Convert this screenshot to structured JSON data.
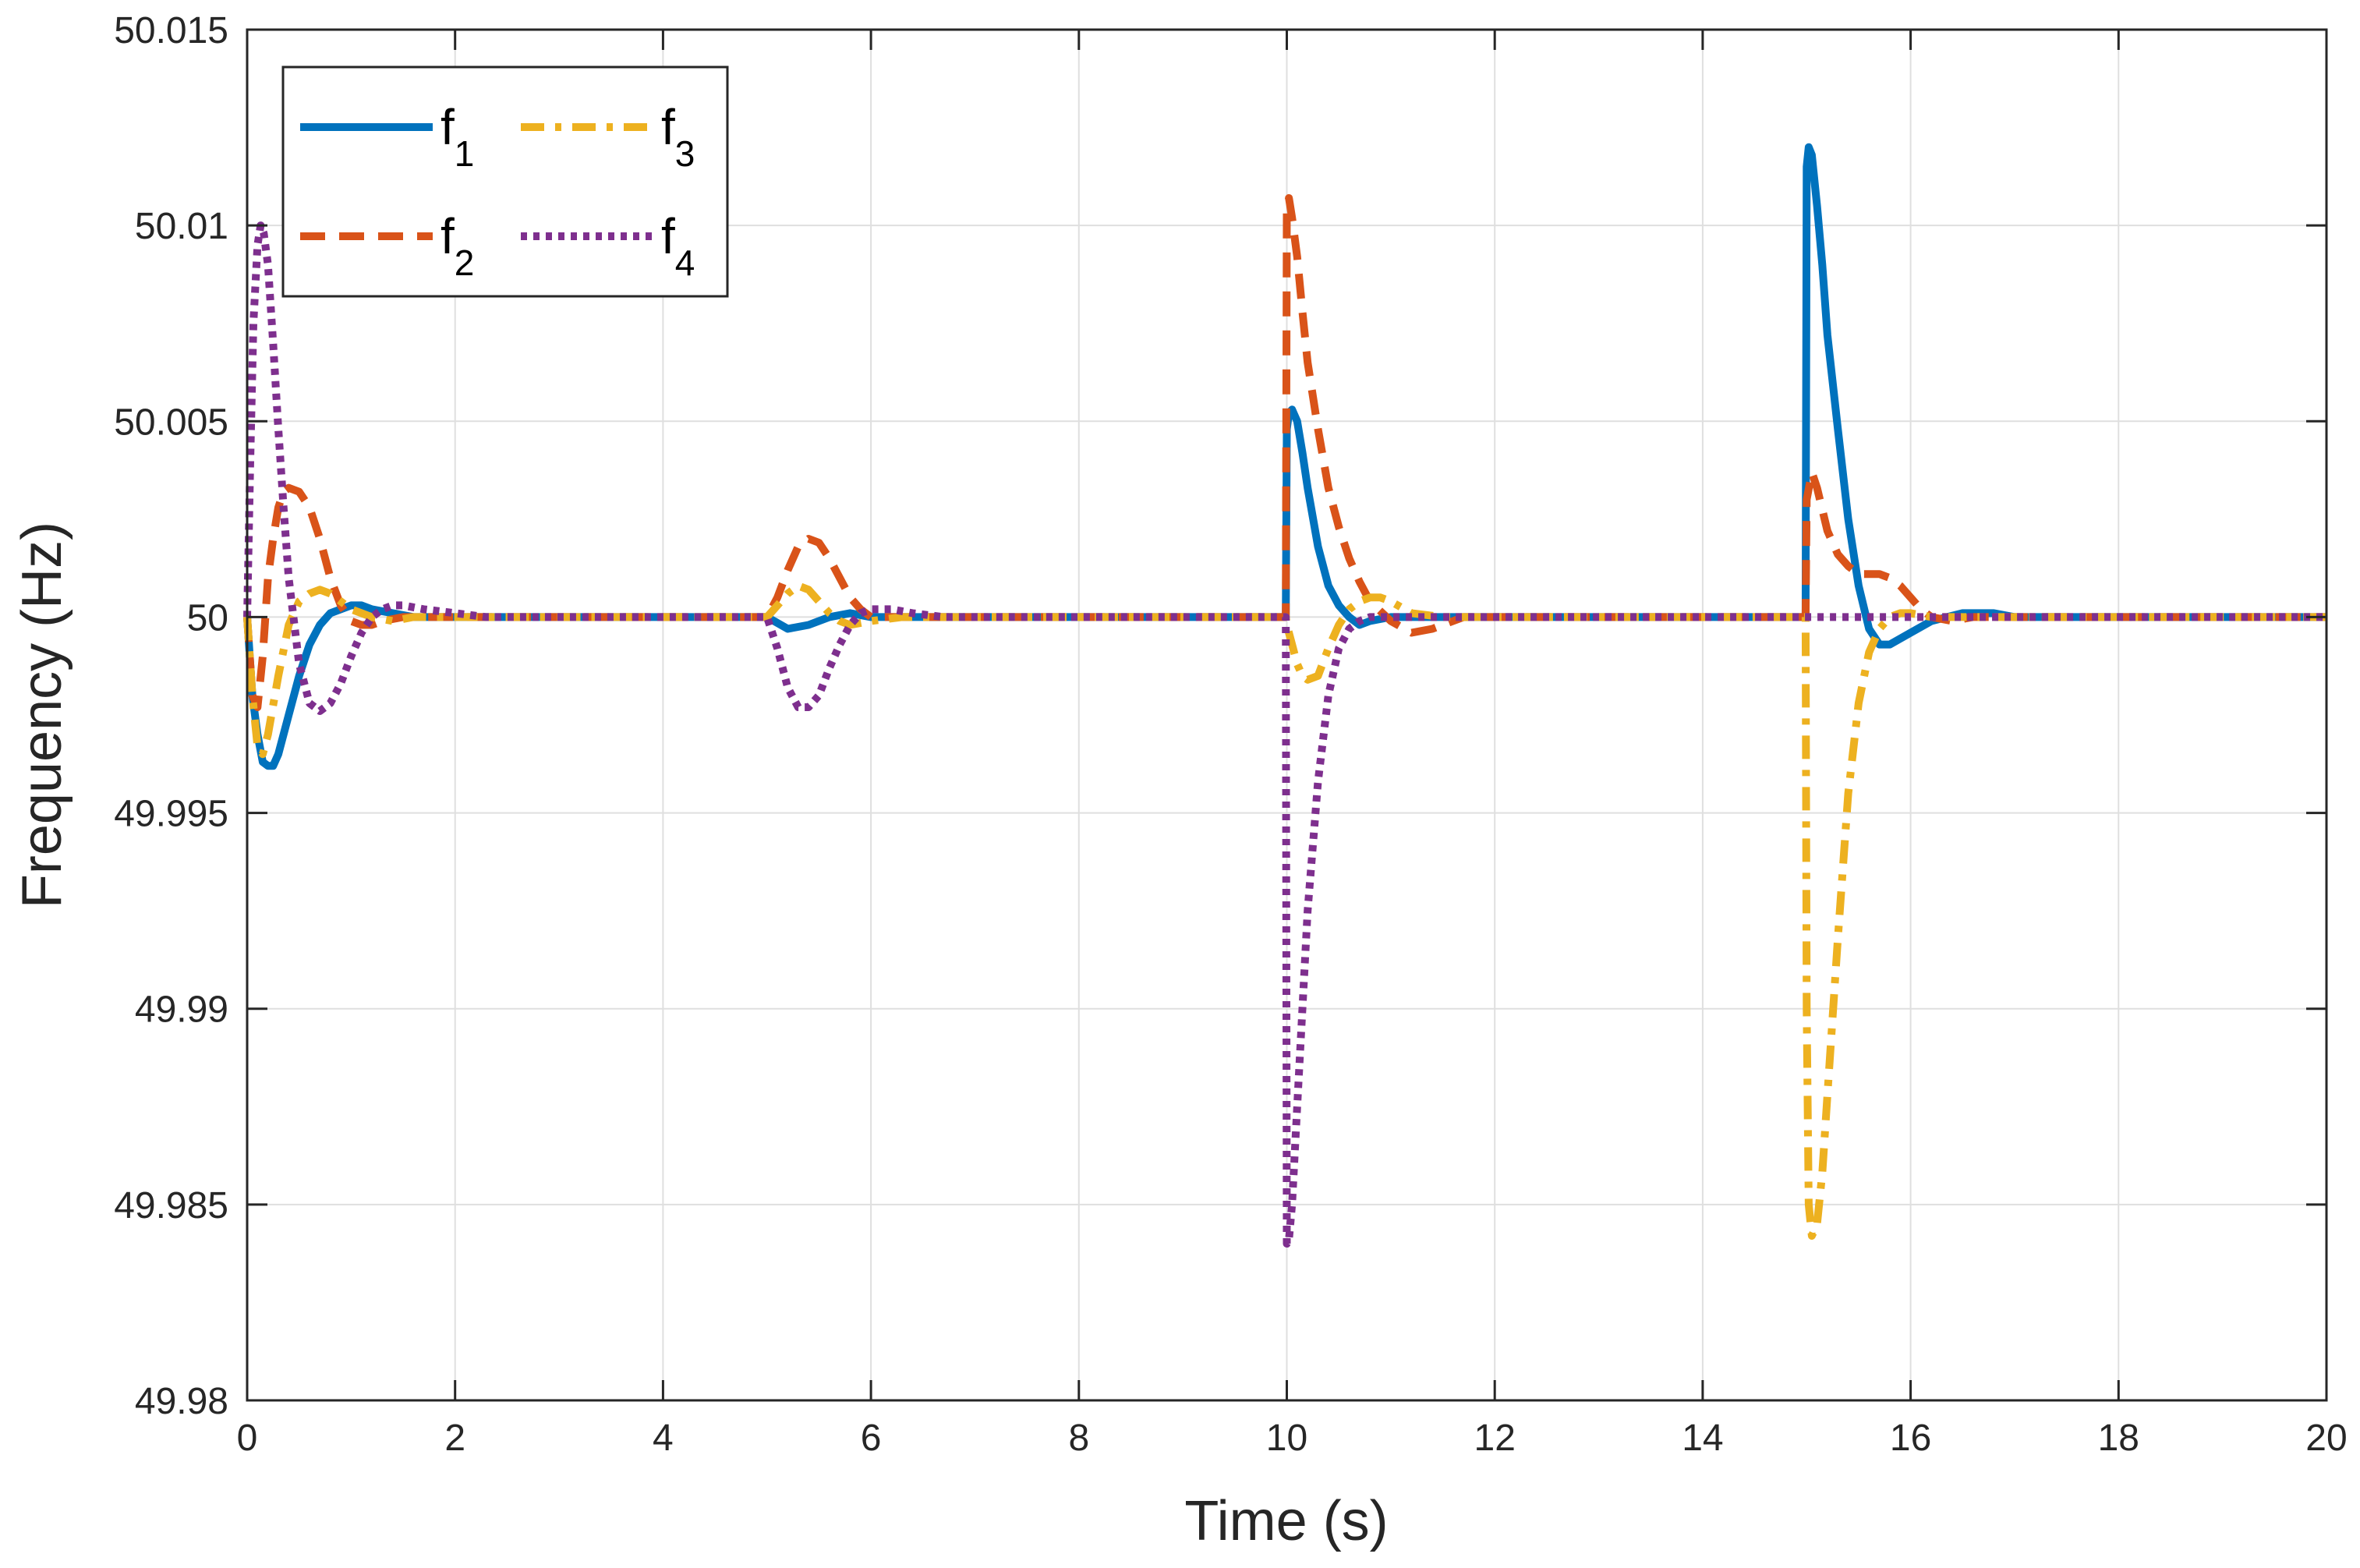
{
  "chart_data": {
    "type": "line",
    "title": "",
    "xlabel": "Time (s)",
    "ylabel": "Frequency (Hz)",
    "xlim": [
      0,
      20
    ],
    "ylim": [
      49.98,
      50.015
    ],
    "xticks": [
      0,
      2,
      4,
      6,
      8,
      10,
      12,
      14,
      16,
      18,
      20
    ],
    "xtick_labels": [
      "0",
      "2",
      "4",
      "6",
      "8",
      "10",
      "12",
      "14",
      "16",
      "18",
      "20"
    ],
    "yticks": [
      49.98,
      49.985,
      49.99,
      49.995,
      50,
      50.005,
      50.01,
      50.015
    ],
    "ytick_labels": [
      "49.98",
      "49.985",
      "49.99",
      "49.995",
      "50",
      "50.005",
      "50.01",
      "50.015"
    ],
    "grid": true,
    "legend_position": "top-left",
    "series": [
      {
        "name": "f1",
        "label_main": "f",
        "label_sub": "1",
        "color": "#0072BD",
        "style": "solid",
        "x": [
          0,
          0.05,
          0.1,
          0.15,
          0.2,
          0.25,
          0.3,
          0.4,
          0.5,
          0.6,
          0.7,
          0.8,
          0.9,
          1.0,
          1.1,
          1.2,
          1.4,
          1.6,
          2.0,
          5.0,
          5.2,
          5.4,
          5.6,
          5.8,
          6.0,
          6.5,
          9.99,
          10.0,
          10.02,
          10.05,
          10.1,
          10.15,
          10.2,
          10.3,
          10.4,
          10.5,
          10.6,
          10.7,
          10.8,
          11.0,
          11.2,
          12.0,
          14.99,
          15.0,
          15.02,
          15.05,
          15.1,
          15.15,
          15.2,
          15.3,
          15.4,
          15.5,
          15.6,
          15.7,
          15.8,
          16.0,
          16.2,
          16.5,
          16.8,
          17.0,
          20
        ],
        "y": [
          50.0,
          49.998,
          49.997,
          49.9963,
          49.9962,
          49.9962,
          49.9965,
          49.9975,
          49.9985,
          49.9993,
          49.9998,
          50.0001,
          50.0002,
          50.0003,
          50.0003,
          50.0002,
          50.0001,
          50.0,
          50.0,
          50.0,
          49.9997,
          49.9998,
          50.0,
          50.0001,
          50.0,
          50.0,
          50.0,
          50.0048,
          50.0052,
          50.0053,
          50.005,
          50.0042,
          50.0033,
          50.0018,
          50.0008,
          50.0003,
          50.0,
          49.9998,
          49.9999,
          50.0,
          50.0,
          50.0,
          50.0,
          50.0115,
          50.012,
          50.0118,
          50.0105,
          50.009,
          50.0072,
          50.0048,
          50.0025,
          50.0008,
          49.9997,
          49.9993,
          49.9993,
          49.9996,
          49.9999,
          50.0001,
          50.0001,
          50.0,
          50.0
        ]
      },
      {
        "name": "f2",
        "label_main": "f",
        "label_sub": "2",
        "color": "#D95319",
        "style": "dashed",
        "x": [
          0,
          0.05,
          0.1,
          0.15,
          0.2,
          0.25,
          0.3,
          0.35,
          0.4,
          0.5,
          0.6,
          0.7,
          0.8,
          0.9,
          1.0,
          1.1,
          1.2,
          1.3,
          1.5,
          1.8,
          2.0,
          5.0,
          5.1,
          5.2,
          5.3,
          5.4,
          5.5,
          5.6,
          5.7,
          5.8,
          5.9,
          6.0,
          6.2,
          6.5,
          7.0,
          9.99,
          10.0,
          10.02,
          10.05,
          10.1,
          10.15,
          10.2,
          10.3,
          10.4,
          10.5,
          10.6,
          10.7,
          10.8,
          11.0,
          11.2,
          11.4,
          11.7,
          12.0,
          14.99,
          15.0,
          15.05,
          15.1,
          15.2,
          15.3,
          15.4,
          15.5,
          15.6,
          15.7,
          15.8,
          15.9,
          16.0,
          16.1,
          16.2,
          16.4,
          16.6,
          20
        ],
        "y": [
          50.0,
          49.998,
          49.9977,
          49.999,
          50.001,
          50.002,
          50.0028,
          50.0032,
          50.0033,
          50.0032,
          50.0028,
          50.002,
          50.001,
          50.0003,
          49.9999,
          49.9998,
          49.9998,
          49.9999,
          50.0,
          50.0,
          50.0,
          50.0,
          50.0005,
          50.0012,
          50.0018,
          50.002,
          50.0019,
          50.0015,
          50.001,
          50.0005,
          50.0002,
          50.0,
          50.0,
          50.0,
          50.0,
          50.0,
          50.0104,
          50.0107,
          50.0102,
          50.0092,
          50.0078,
          50.0065,
          50.0048,
          50.0033,
          50.0023,
          50.0015,
          50.0009,
          50.0004,
          49.9999,
          49.9996,
          49.9997,
          50.0,
          50.0,
          50.0,
          50.003,
          50.0037,
          50.0033,
          50.0022,
          50.0016,
          50.0013,
          50.0011,
          50.0011,
          50.0011,
          50.001,
          50.0008,
          50.0005,
          50.0002,
          50.0,
          49.9999,
          50.0,
          50.0
        ]
      },
      {
        "name": "f3",
        "label_main": "f",
        "label_sub": "3",
        "color": "#EDB120",
        "style": "dashdot",
        "x": [
          0,
          0.05,
          0.1,
          0.15,
          0.2,
          0.3,
          0.4,
          0.5,
          0.6,
          0.7,
          0.8,
          0.9,
          1.0,
          1.2,
          1.4,
          1.6,
          2.0,
          5.0,
          5.1,
          5.2,
          5.3,
          5.4,
          5.5,
          5.6,
          5.7,
          5.8,
          6.0,
          6.3,
          7.0,
          9.99,
          10.0,
          10.05,
          10.1,
          10.15,
          10.2,
          10.3,
          10.4,
          10.5,
          10.6,
          10.7,
          10.8,
          10.9,
          11.0,
          11.2,
          11.5,
          12.0,
          14.99,
          15.0,
          15.02,
          15.05,
          15.1,
          15.15,
          15.2,
          15.3,
          15.4,
          15.5,
          15.6,
          15.7,
          15.8,
          15.9,
          16.0,
          16.2,
          16.5,
          20
        ],
        "y": [
          50.0,
          49.998,
          49.9967,
          49.9965,
          49.997,
          49.9985,
          49.9998,
          50.0004,
          50.0006,
          50.0007,
          50.0006,
          50.0004,
          50.0002,
          50.0,
          49.9999,
          50.0,
          50.0,
          50.0,
          50.0003,
          50.0006,
          50.0008,
          50.0007,
          50.0004,
          50.0001,
          49.9999,
          49.9998,
          49.9999,
          50.0,
          50.0,
          50.0,
          49.9998,
          49.9993,
          49.9988,
          49.9985,
          49.9984,
          49.9985,
          49.9992,
          49.9998,
          50.0002,
          50.0004,
          50.0005,
          50.0005,
          50.0004,
          50.0001,
          50.0,
          50.0,
          50.0,
          49.99,
          49.985,
          49.9842,
          49.9845,
          49.9858,
          49.9878,
          49.9918,
          49.9955,
          49.9978,
          49.9991,
          49.9997,
          50.0,
          50.0001,
          50.0001,
          50.0,
          50.0,
          50.0
        ]
      },
      {
        "name": "f4",
        "label_main": "f",
        "label_sub": "4",
        "color": "#7E2F8E",
        "style": "dotted",
        "x": [
          0,
          0.03,
          0.06,
          0.1,
          0.13,
          0.16,
          0.2,
          0.25,
          0.3,
          0.35,
          0.4,
          0.5,
          0.6,
          0.7,
          0.8,
          0.9,
          1.0,
          1.1,
          1.2,
          1.3,
          1.4,
          1.5,
          1.7,
          2.0,
          2.3,
          5.0,
          5.1,
          5.2,
          5.3,
          5.4,
          5.5,
          5.6,
          5.7,
          5.8,
          5.9,
          6.0,
          6.1,
          6.2,
          6.4,
          6.7,
          7.0,
          9.99,
          10.0,
          10.02,
          10.05,
          10.1,
          10.15,
          10.2,
          10.3,
          10.4,
          10.5,
          10.6,
          10.7,
          10.8,
          11.0,
          11.3,
          12.0,
          20
        ],
        "y": [
          50.0,
          50.004,
          50.0075,
          50.0095,
          50.01,
          50.0098,
          50.009,
          50.007,
          50.0048,
          50.0028,
          50.001,
          49.9988,
          49.9978,
          49.9976,
          49.9978,
          49.9983,
          49.999,
          49.9996,
          50.0,
          50.0002,
          50.0003,
          50.0003,
          50.0002,
          50.0001,
          50.0,
          50.0,
          49.9992,
          49.9982,
          49.9977,
          49.9977,
          49.998,
          49.9987,
          49.9993,
          49.9998,
          50.0001,
          50.0002,
          50.0002,
          50.0002,
          50.0001,
          50.0,
          50.0,
          50.0,
          49.984,
          49.9841,
          49.985,
          49.9875,
          49.99,
          49.9925,
          49.9958,
          49.998,
          49.9992,
          49.9997,
          49.9999,
          50.0,
          50.0,
          50.0,
          50.0,
          50.0
        ]
      }
    ]
  }
}
